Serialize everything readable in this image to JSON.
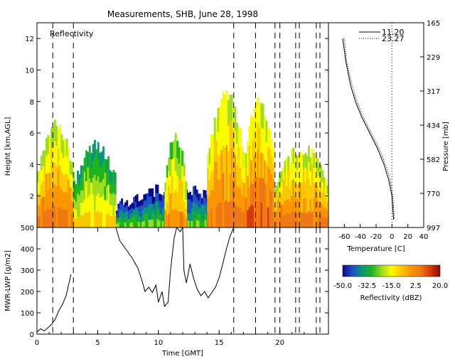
{
  "title": "Measurements, SHB, June 28, 1998",
  "reflectivity_panel": {
    "label": "Reflectivity",
    "type": "heatmap",
    "ylabel": "Height [km,AGL]",
    "xlim": [
      0,
      24
    ],
    "ylim": [
      0,
      13
    ],
    "yticks": [
      2,
      4,
      6,
      8,
      10,
      12
    ],
    "dashed_times": [
      1.3,
      3.0,
      16.2,
      18.0,
      19.6,
      20.0,
      21.3,
      21.6,
      23.0,
      23.3
    ],
    "echo_regions": [
      {
        "t0": 0.0,
        "t1": 3.0,
        "top_km": 6.5,
        "core_dbz": 5
      },
      {
        "t0": 3.0,
        "t1": 6.5,
        "top_km": 5.2,
        "core_dbz": -10
      },
      {
        "t0": 6.5,
        "t1": 16.0,
        "top_km": 2.5,
        "core_dbz": -25
      },
      {
        "t0": 10.5,
        "t1": 12.2,
        "top_km": 5.8,
        "core_dbz": 0
      },
      {
        "t0": 14.0,
        "t1": 17.0,
        "top_km": 8.5,
        "core_dbz": 5
      },
      {
        "t0": 17.0,
        "t1": 19.5,
        "top_km": 8.0,
        "core_dbz": 8
      },
      {
        "t0": 19.5,
        "t1": 24.0,
        "top_km": 5.0,
        "core_dbz": 5
      }
    ]
  },
  "lwp_panel": {
    "type": "line",
    "ylabel": "MWR-LWP [g/m2]",
    "xlabel": "Time [GMT]",
    "xlim": [
      0,
      24
    ],
    "ylim": [
      0,
      500
    ],
    "xticks": [
      0,
      5,
      10,
      15,
      20
    ],
    "yticks": [
      0,
      100,
      200,
      300,
      400,
      500
    ],
    "segments": [
      [
        [
          0.0,
          10
        ],
        [
          0.3,
          25
        ],
        [
          0.6,
          15
        ],
        [
          0.9,
          30
        ],
        [
          1.2,
          45
        ],
        [
          1.5,
          70
        ],
        [
          1.8,
          110
        ],
        [
          2.1,
          140
        ],
        [
          2.4,
          180
        ],
        [
          2.6,
          230
        ],
        [
          2.8,
          280
        ]
      ],
      [
        [
          6.5,
          500
        ],
        [
          6.8,
          440
        ],
        [
          7.3,
          400
        ],
        [
          7.8,
          360
        ],
        [
          8.3,
          310
        ],
        [
          8.6,
          260
        ],
        [
          8.9,
          200
        ],
        [
          9.2,
          220
        ],
        [
          9.5,
          195
        ],
        [
          9.8,
          230
        ],
        [
          10.0,
          150
        ],
        [
          10.3,
          200
        ],
        [
          10.5,
          130
        ],
        [
          10.8,
          150
        ],
        [
          11.0,
          300
        ],
        [
          11.3,
          450
        ],
        [
          11.5,
          500
        ],
        [
          11.8,
          480
        ],
        [
          12.0,
          500
        ],
        [
          12.1,
          300
        ],
        [
          12.3,
          240
        ],
        [
          12.6,
          330
        ],
        [
          12.9,
          260
        ],
        [
          13.2,
          210
        ],
        [
          13.5,
          180
        ],
        [
          13.8,
          200
        ],
        [
          14.1,
          170
        ],
        [
          14.4,
          195
        ],
        [
          14.7,
          220
        ],
        [
          15.0,
          265
        ],
        [
          15.3,
          330
        ],
        [
          15.6,
          400
        ],
        [
          15.9,
          460
        ],
        [
          16.2,
          500
        ]
      ]
    ]
  },
  "sounding_panel": {
    "type": "line",
    "xlabel": "Temperature [C]",
    "ylabel": "Pressure [mb]",
    "xlim": [
      -80,
      40
    ],
    "xticks": [
      -60,
      -40,
      -20,
      0,
      20,
      40
    ],
    "pressure_ticks": [
      "165",
      "229",
      "317",
      "434",
      "582",
      "770",
      "997"
    ],
    "zero_line_c": 0,
    "series": [
      {
        "name": "11.20",
        "style": "solid",
        "temp_c": [
          -62,
          -58,
          -52,
          -46,
          -38,
          -28,
          -18,
          -10,
          -4,
          0,
          2
        ],
        "height_km": [
          12,
          10.5,
          9,
          8,
          7,
          6,
          5,
          4,
          3,
          2,
          0.5
        ]
      },
      {
        "name": "23.27",
        "style": "dotted",
        "temp_c": [
          -60,
          -57,
          -50,
          -44,
          -36,
          -26,
          -16,
          -8,
          -2,
          1,
          3
        ],
        "height_km": [
          12,
          10.5,
          9,
          8,
          7,
          6,
          5,
          4,
          3,
          2,
          0.5
        ]
      }
    ]
  },
  "colorbar": {
    "label": "Reflectivity (dBZ)",
    "tick_labels": [
      "-50.0",
      "-32.5",
      "-15.0",
      "2.5",
      "20.0"
    ],
    "colors": [
      "#0a0a8c",
      "#1e50c8",
      "#0a9678",
      "#1eb41e",
      "#a0dc1e",
      "#fafa00",
      "#fac800",
      "#fa9600",
      "#f07814",
      "#d23c0a",
      "#8c0a0a"
    ]
  }
}
